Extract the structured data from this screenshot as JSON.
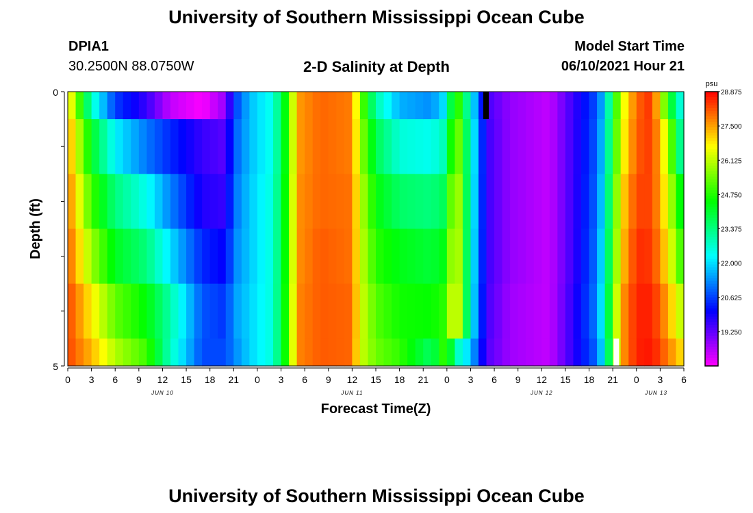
{
  "header": {
    "title": "University of Southern Mississippi Ocean Cube",
    "station_id": "DPIA1",
    "coordinates": "30.2500N  88.0750W",
    "plot_title": "2-D Salinity at Depth",
    "model_start_label": "Model Start Time",
    "model_start_value": "06/10/2021 Hour 21"
  },
  "footer": {
    "title": "University of Southern Mississippi Ocean Cube"
  },
  "chart_data": {
    "type": "heatmap",
    "title": "2-D Salinity at Depth",
    "xlabel": "Forecast Time(Z)",
    "ylabel": "Depth (ft)",
    "ylim": [
      0,
      5
    ],
    "y_tick_labels": [
      "0",
      "5"
    ],
    "x_tick_labels": [
      "0",
      "3",
      "6",
      "9",
      "12",
      "15",
      "18",
      "21",
      "0",
      "3",
      "6",
      "9",
      "12",
      "15",
      "18",
      "21",
      "0",
      "3",
      "6",
      "9",
      "12",
      "15",
      "18",
      "21",
      "0",
      "3",
      "6"
    ],
    "day_labels": [
      "JUN 10",
      "JUN 11",
      "JUN 12",
      "JUN 13"
    ],
    "colorbar": {
      "unit": "psu",
      "ticks": [
        "28.875",
        "27.500",
        "26.125",
        "24.750",
        "23.375",
        "22.000",
        "20.625",
        "19.250"
      ],
      "min": 17.875,
      "max": 28.875
    },
    "time_hours": [
      0,
      78
    ],
    "depth_layers": [
      0,
      0.5,
      1.5,
      2.5,
      3.5,
      4.5,
      5
    ],
    "keyframes": [
      {
        "h": 0,
        "v": [
          27.2,
          27.6,
          27.9,
          28.1,
          28.3,
          28.3
        ]
      },
      {
        "h": 3,
        "v": [
          22.8,
          24.2,
          25.0,
          25.8,
          26.8,
          27.3
        ]
      },
      {
        "h": 6,
        "v": [
          20.6,
          22.2,
          23.4,
          24.2,
          25.3,
          26.0
        ]
      },
      {
        "h": 10,
        "v": [
          19.6,
          21.1,
          22.4,
          23.4,
          24.4,
          25.0
        ]
      },
      {
        "h": 13,
        "v": [
          18.4,
          20.4,
          21.2,
          22.0,
          23.0,
          22.8
        ]
      },
      {
        "h": 17,
        "v": [
          17.9,
          19.6,
          19.8,
          20.4,
          20.8,
          20.7
        ]
      },
      {
        "h": 20,
        "v": [
          18.8,
          19.3,
          19.6,
          20.0,
          20.5,
          20.7
        ]
      },
      {
        "h": 21,
        "v": [
          20.5,
          20.8,
          21.0,
          21.2,
          21.4,
          21.2
        ]
      },
      {
        "h": 23,
        "v": [
          21.7,
          21.7,
          21.8,
          21.8,
          21.9,
          21.9
        ]
      },
      {
        "h": 26,
        "v": [
          22.5,
          22.5,
          22.6,
          22.6,
          22.6,
          22.6
        ]
      },
      {
        "h": 28,
        "v": [
          25.0,
          25.0,
          25.1,
          25.1,
          25.2,
          25.2
        ]
      },
      {
        "h": 29,
        "v": [
          27.5,
          27.5,
          27.6,
          27.6,
          27.7,
          27.7
        ]
      },
      {
        "h": 32,
        "v": [
          28.0,
          28.0,
          28.0,
          28.1,
          28.1,
          28.1
        ]
      },
      {
        "h": 36,
        "v": [
          27.8,
          27.8,
          27.9,
          27.9,
          28.0,
          28.0
        ]
      },
      {
        "h": 37,
        "v": [
          25.6,
          25.9,
          26.2,
          26.3,
          26.4,
          26.3
        ]
      },
      {
        "h": 39,
        "v": [
          23.0,
          23.8,
          24.4,
          24.8,
          25.2,
          25.4
        ]
      },
      {
        "h": 42,
        "v": [
          21.6,
          22.6,
          23.6,
          24.3,
          24.6,
          24.9
        ]
      },
      {
        "h": 46,
        "v": [
          21.3,
          22.4,
          23.4,
          24.0,
          24.5,
          23.6
        ]
      },
      {
        "h": 48,
        "v": [
          22.2,
          23.0,
          23.8,
          24.4,
          24.9,
          25.2
        ]
      },
      {
        "h": 49,
        "v": [
          25.6,
          26.2,
          26.8,
          27.0,
          27.3,
          23.0
        ]
      },
      {
        "h": 51,
        "v": [
          22.5,
          22.8,
          22.7,
          22.6,
          22.5,
          21.8
        ]
      },
      {
        "h": 53,
        "v": [
          19.5,
          19.6,
          19.6,
          19.6,
          19.5,
          19.4
        ]
      },
      {
        "h": 56,
        "v": [
          18.8,
          18.8,
          18.8,
          18.8,
          18.7,
          18.7
        ]
      },
      {
        "h": 61,
        "v": [
          18.4,
          18.4,
          18.4,
          18.4,
          18.4,
          18.4
        ]
      },
      {
        "h": 64,
        "v": [
          19.6,
          19.6,
          19.6,
          19.6,
          19.7,
          19.7
        ]
      },
      {
        "h": 67,
        "v": [
          20.8,
          20.9,
          21.0,
          21.1,
          21.2,
          21.0
        ]
      },
      {
        "h": 68,
        "v": [
          22.0,
          22.2,
          22.4,
          22.6,
          22.8,
          22.5
        ]
      },
      {
        "h": 70,
        "v": [
          26.2,
          26.4,
          26.8,
          27.0,
          27.4,
          27.4
        ]
      },
      {
        "h": 72,
        "v": [
          28.0,
          28.1,
          28.3,
          28.5,
          28.6,
          28.6
        ]
      },
      {
        "h": 74,
        "v": [
          28.5,
          28.4,
          28.3,
          28.4,
          28.6,
          28.7
        ]
      },
      {
        "h": 76,
        "v": [
          24.6,
          26.0,
          26.4,
          26.8,
          27.4,
          27.8
        ]
      },
      {
        "h": 78,
        "v": [
          22.0,
          22.4,
          23.8,
          24.6,
          25.8,
          26.8
        ]
      }
    ],
    "special_cells": [
      {
        "hour": 52.6,
        "layer": 0,
        "value": "missing-dark"
      },
      {
        "hour": 69.1,
        "layer": 5,
        "value": "missing-light"
      }
    ]
  }
}
